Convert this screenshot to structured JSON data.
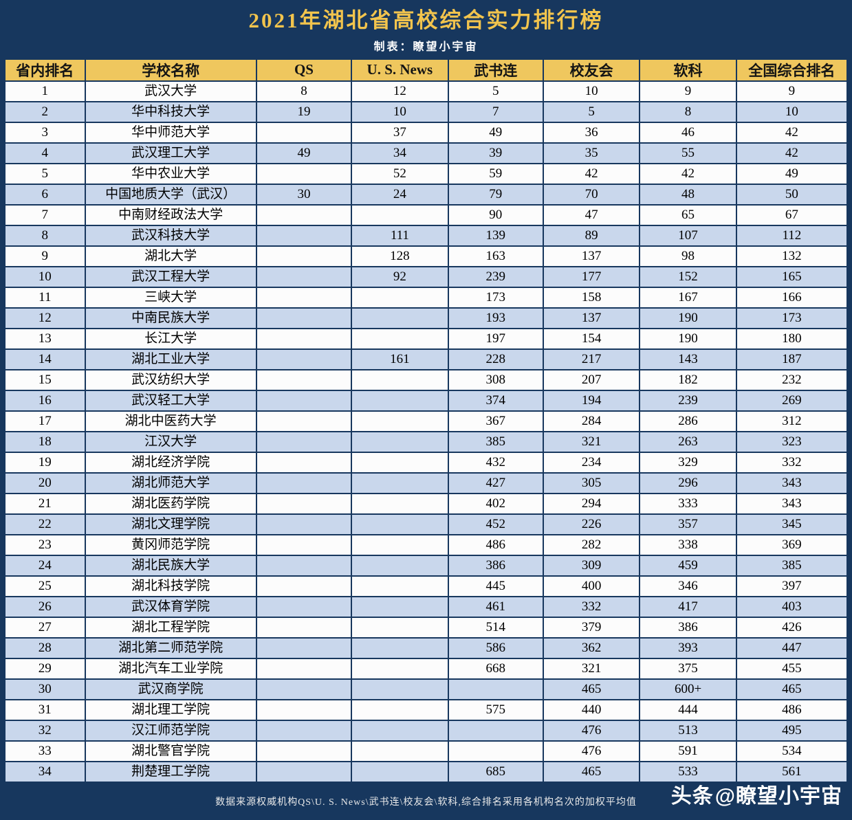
{
  "header": {
    "title": "2021年湖北省高校综合实力排行榜",
    "subtitle": "制表：瞭望小宇宙"
  },
  "chart_data": {
    "type": "table",
    "title": "2021年湖北省高校综合实力排行榜",
    "columns": [
      "省内排名",
      "学校名称",
      "QS",
      "U. S. News",
      "武书连",
      "校友会",
      "软科",
      "全国综合排名"
    ],
    "rows": [
      [
        "1",
        "武汉大学",
        "8",
        "12",
        "5",
        "10",
        "9",
        "9"
      ],
      [
        "2",
        "华中科技大学",
        "19",
        "10",
        "7",
        "5",
        "8",
        "10"
      ],
      [
        "3",
        "华中师范大学",
        "",
        "37",
        "49",
        "36",
        "46",
        "42"
      ],
      [
        "4",
        "武汉理工大学",
        "49",
        "34",
        "39",
        "35",
        "55",
        "42"
      ],
      [
        "5",
        "华中农业大学",
        "",
        "52",
        "59",
        "42",
        "42",
        "49"
      ],
      [
        "6",
        "中国地质大学（武汉）",
        "30",
        "24",
        "79",
        "70",
        "48",
        "50"
      ],
      [
        "7",
        "中南财经政法大学",
        "",
        "",
        "90",
        "47",
        "65",
        "67"
      ],
      [
        "8",
        "武汉科技大学",
        "",
        "111",
        "139",
        "89",
        "107",
        "112"
      ],
      [
        "9",
        "湖北大学",
        "",
        "128",
        "163",
        "137",
        "98",
        "132"
      ],
      [
        "10",
        "武汉工程大学",
        "",
        "92",
        "239",
        "177",
        "152",
        "165"
      ],
      [
        "11",
        "三峡大学",
        "",
        "",
        "173",
        "158",
        "167",
        "166"
      ],
      [
        "12",
        "中南民族大学",
        "",
        "",
        "193",
        "137",
        "190",
        "173"
      ],
      [
        "13",
        "长江大学",
        "",
        "",
        "197",
        "154",
        "190",
        "180"
      ],
      [
        "14",
        "湖北工业大学",
        "",
        "161",
        "228",
        "217",
        "143",
        "187"
      ],
      [
        "15",
        "武汉纺织大学",
        "",
        "",
        "308",
        "207",
        "182",
        "232"
      ],
      [
        "16",
        "武汉轻工大学",
        "",
        "",
        "374",
        "194",
        "239",
        "269"
      ],
      [
        "17",
        "湖北中医药大学",
        "",
        "",
        "367",
        "284",
        "286",
        "312"
      ],
      [
        "18",
        "江汉大学",
        "",
        "",
        "385",
        "321",
        "263",
        "323"
      ],
      [
        "19",
        "湖北经济学院",
        "",
        "",
        "432",
        "234",
        "329",
        "332"
      ],
      [
        "20",
        "湖北师范大学",
        "",
        "",
        "427",
        "305",
        "296",
        "343"
      ],
      [
        "21",
        "湖北医药学院",
        "",
        "",
        "402",
        "294",
        "333",
        "343"
      ],
      [
        "22",
        "湖北文理学院",
        "",
        "",
        "452",
        "226",
        "357",
        "345"
      ],
      [
        "23",
        "黄冈师范学院",
        "",
        "",
        "486",
        "282",
        "338",
        "369"
      ],
      [
        "24",
        "湖北民族大学",
        "",
        "",
        "386",
        "309",
        "459",
        "385"
      ],
      [
        "25",
        "湖北科技学院",
        "",
        "",
        "445",
        "400",
        "346",
        "397"
      ],
      [
        "26",
        "武汉体育学院",
        "",
        "",
        "461",
        "332",
        "417",
        "403"
      ],
      [
        "27",
        "湖北工程学院",
        "",
        "",
        "514",
        "379",
        "386",
        "426"
      ],
      [
        "28",
        "湖北第二师范学院",
        "",
        "",
        "586",
        "362",
        "393",
        "447"
      ],
      [
        "29",
        "湖北汽车工业学院",
        "",
        "",
        "668",
        "321",
        "375",
        "455"
      ],
      [
        "30",
        "武汉商学院",
        "",
        "",
        "",
        "465",
        "600+",
        "465"
      ],
      [
        "31",
        "湖北理工学院",
        "",
        "",
        "575",
        "440",
        "444",
        "486"
      ],
      [
        "32",
        "汉江师范学院",
        "",
        "",
        "",
        "476",
        "513",
        "495"
      ],
      [
        "33",
        "湖北警官学院",
        "",
        "",
        "",
        "476",
        "591",
        "534"
      ],
      [
        "34",
        "荆楚理工学院",
        "",
        "",
        "685",
        "465",
        "533",
        "561"
      ]
    ]
  },
  "footer": {
    "source": "数据来源权威机构QS\\U. S. News\\武书连\\校友会\\软科,综合排名采用各机构名次的加权平均值",
    "watermark_logo": "头条",
    "watermark_handle": "@瞭望小宇宙"
  },
  "colors": {
    "navy": "#17375E",
    "gold_header": "#EFC75E",
    "title_gold": "#F2C44D",
    "row_white": "#FCFCFC",
    "row_blue": "#C9D7EC"
  }
}
